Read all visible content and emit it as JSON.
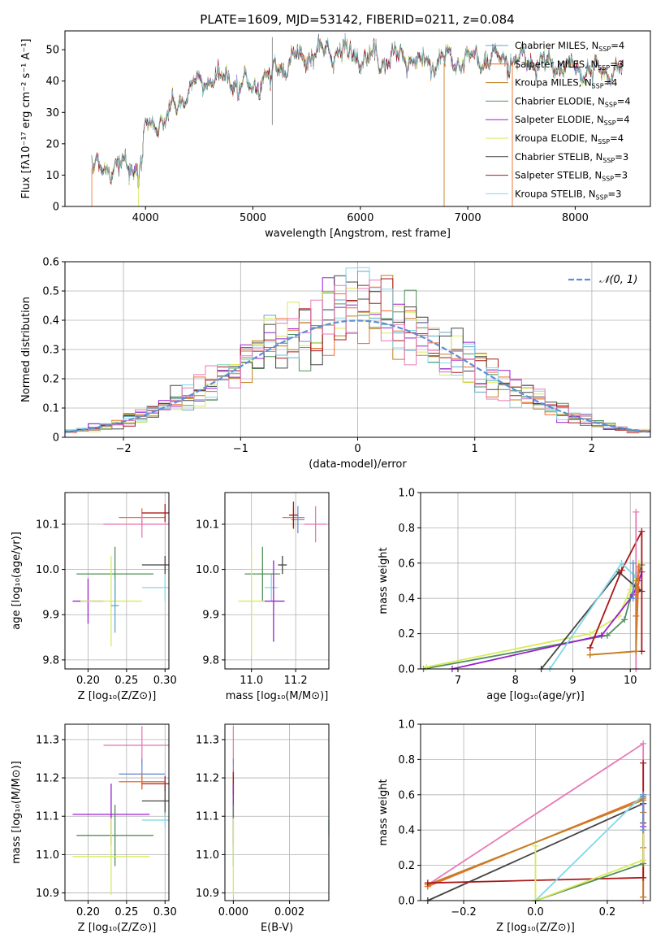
{
  "title": "PLATE=1609, MJD=53142, FIBERID=0211, z=0.084",
  "colors": {
    "c1": "#5fa8c8",
    "c2": "#ee6a2a",
    "c3": "#c08020",
    "c4": "#50905a",
    "c5": "#9a1fd0",
    "c6": "#d8ea5a",
    "c7": "#444444",
    "c8": "#aa1818",
    "c9": "#80d8e8",
    "pink": "#e87ab8",
    "blue": "#6b8fd8",
    "gauss": "#5b8fd9"
  },
  "chart_data": [
    {
      "id": "spectrum",
      "type": "line",
      "xlabel": "wavelength [Angstrom, rest frame]",
      "ylabel": "Flux [f$_\\lambda$10$^{-17}$ erg cm$^{-2}$ s$^{-1}$ A$^{-1}$]",
      "xlim": [
        3250,
        8700
      ],
      "ylim": [
        0,
        56
      ],
      "xticks": [
        4000,
        5000,
        6000,
        7000,
        8000
      ],
      "yticks": [
        0,
        10,
        20,
        30,
        40,
        50
      ],
      "series": [
        {
          "name": "Chabrier MILES, N_SSP=4",
          "color": "#5fa8c8"
        },
        {
          "name": "Salpeter MILES, N_SSP=3",
          "color": "#ee6a2a"
        },
        {
          "name": "Kroupa MILES, N_SSP=4",
          "color": "#c08020"
        },
        {
          "name": "Chabrier ELODIE, N_SSP=4",
          "color": "#50905a"
        },
        {
          "name": "Salpeter ELODIE, N_SSP=4",
          "color": "#9a1fd0"
        },
        {
          "name": "Kroupa ELODIE, N_SSP=4",
          "color": "#d8ea5a"
        },
        {
          "name": "Chabrier STELIB, N_SSP=3",
          "color": "#444444"
        },
        {
          "name": "Salpeter STELIB, N_SSP=3",
          "color": "#aa1818"
        },
        {
          "name": "Kroupa STELIB, N_SSP=3",
          "color": "#80d8e8"
        }
      ],
      "continuum_x": [
        3500,
        3700,
        3900,
        3950,
        4000,
        4200,
        4400,
        4600,
        4800,
        5000,
        5200,
        5400,
        5600,
        5800,
        6000,
        6200,
        6400,
        6600,
        6800,
        7000,
        7200,
        7400,
        7600,
        7800,
        8000,
        8200,
        8400
      ],
      "continuum_y": [
        12,
        13,
        12,
        15,
        25,
        28,
        37,
        41,
        40,
        38,
        44,
        47,
        49,
        50,
        48,
        47,
        48,
        46,
        47,
        47,
        47,
        47,
        46,
        45,
        44,
        43,
        43
      ]
    },
    {
      "id": "residuals",
      "type": "histogram",
      "xlabel": "(data-model)/error",
      "ylabel": "Normed distribution",
      "xlim": [
        -2.5,
        2.5
      ],
      "ylim": [
        0,
        0.6
      ],
      "xticks": [
        -2,
        -1,
        0,
        1,
        2
      ],
      "xtick_labels": [
        "−2",
        "−1",
        "0",
        "1",
        "2"
      ],
      "yticks": [
        0,
        0.1,
        0.2,
        0.3,
        0.4,
        0.5,
        0.6
      ],
      "legend": "$\\mathcal{N}(0,1)$",
      "bin_width": 0.1
    },
    {
      "id": "age_vs_Z",
      "type": "scatter",
      "xlabel": "Z [log$_{10}$(Z/Z$_\\odot$)]",
      "ylabel": "age  [log$_{10}$(age/yr)]",
      "xlim": [
        0.17,
        0.305
      ],
      "ylim": [
        9.78,
        10.17
      ],
      "xticks": [
        0.2,
        0.25,
        0.3
      ],
      "xtick_labels": [
        "0.20",
        "0.25",
        "0.30"
      ],
      "yticks": [
        9.8,
        9.9,
        10.0,
        10.1
      ],
      "ytick_labels": [
        "9.8",
        "9.9",
        "10.0",
        "10.1"
      ],
      "points": [
        {
          "color": "#ee6a2a",
          "x": 0.27,
          "y": 10.115,
          "ex": 0.03,
          "ey": 0.02
        },
        {
          "color": "#e87ab8",
          "x": 0.27,
          "y": 10.1,
          "ex": 0.05,
          "ey": 0.03
        },
        {
          "color": "#aa1818",
          "x": 0.3,
          "y": 10.125,
          "ex": 0.03,
          "ey": 0.02
        },
        {
          "color": "#444444",
          "x": 0.3,
          "y": 10.01,
          "ex": 0.03,
          "ey": 0.02
        },
        {
          "color": "#80d8e8",
          "x": 0.3,
          "y": 9.96,
          "ex": 0.03,
          "ey": 0.03
        },
        {
          "color": "#50905a",
          "x": 0.235,
          "y": 9.99,
          "ex": 0.05,
          "ey": 0.06
        },
        {
          "color": "#9a1fd0",
          "x": 0.2,
          "y": 9.93,
          "ex": 0.02,
          "ey": 0.05
        },
        {
          "color": "#d8ea5a",
          "x": 0.23,
          "y": 9.93,
          "ex": 0.04,
          "ey": 0.1
        },
        {
          "color": "#5fa8c8",
          "x": 0.235,
          "y": 9.92,
          "ex": 0.005,
          "ey": 0.06
        }
      ]
    },
    {
      "id": "age_vs_mass",
      "type": "scatter",
      "xlabel": "mass [log$_{10}$(M/M$_\\odot$)]",
      "ylabel": "",
      "xlim": [
        10.88,
        11.35
      ],
      "ylim": [
        9.78,
        10.17
      ],
      "xticks": [
        11.0,
        11.2
      ],
      "xtick_labels": [
        "11.0",
        "11.2"
      ],
      "yticks": [
        9.8,
        9.9,
        10.0,
        10.1
      ],
      "ytick_labels": [
        "9.8",
        "9.9",
        "10.0",
        "10.1"
      ],
      "points": [
        {
          "color": "#ee6a2a",
          "x": 11.19,
          "y": 10.115,
          "ex": 0.05,
          "ey": 0.02
        },
        {
          "color": "#6b8fd8",
          "x": 11.21,
          "y": 10.11,
          "ex": 0.03,
          "ey": 0.03
        },
        {
          "color": "#aa1818",
          "x": 11.19,
          "y": 10.12,
          "ex": 0.02,
          "ey": 0.03
        },
        {
          "color": "#e87ab8",
          "x": 11.29,
          "y": 10.1,
          "ex": 0.05,
          "ey": 0.04
        },
        {
          "color": "#444444",
          "x": 11.14,
          "y": 10.01,
          "ex": 0.02,
          "ey": 0.02
        },
        {
          "color": "#80d8e8",
          "x": 11.09,
          "y": 9.96,
          "ex": 0.03,
          "ey": 0.03
        },
        {
          "color": "#50905a",
          "x": 11.05,
          "y": 9.99,
          "ex": 0.08,
          "ey": 0.06
        },
        {
          "color": "#9a1fd0",
          "x": 11.1,
          "y": 9.93,
          "ex": 0.05,
          "ey": 0.09
        },
        {
          "color": "#d8ea5a",
          "x": 11.0,
          "y": 9.93,
          "ex": 0.06,
          "ey": 0.12
        }
      ]
    },
    {
      "id": "weight_vs_age",
      "type": "line",
      "xlabel": "age  [log$_{10}$(age/yr)]",
      "ylabel": "mass weight",
      "xlim": [
        6.35,
        10.35
      ],
      "ylim": [
        0,
        1
      ],
      "xticks": [
        7,
        8,
        9,
        10
      ],
      "yticks": [
        0,
        0.2,
        0.4,
        0.6,
        0.8,
        1.0
      ],
      "ytick_labels": [
        "0.0",
        "0.2",
        "0.4",
        "0.6",
        "0.8",
        "1.0"
      ],
      "series": [
        {
          "color": "#50905a",
          "x": [
            6.4,
            9.6,
            9.9,
            10.0,
            10.2
          ],
          "y": [
            0.0,
            0.19,
            0.28,
            0.4,
            0.59
          ]
        },
        {
          "color": "#d8ea5a",
          "x": [
            6.45,
            9.3,
            9.8,
            10.0,
            10.15
          ],
          "y": [
            0.01,
            0.2,
            0.3,
            0.45,
            0.6
          ]
        },
        {
          "color": "#9a1fd0",
          "x": [
            6.9,
            9.5,
            10.05,
            10.15,
            10.2
          ],
          "y": [
            0.0,
            0.19,
            0.42,
            0.5,
            0.55
          ]
        },
        {
          "color": "#444444",
          "x": [
            8.45,
            9.8,
            10.15,
            10.2
          ],
          "y": [
            0.0,
            0.55,
            0.45,
            0.44
          ]
        },
        {
          "color": "#aa1818",
          "x": [
            9.3,
            9.85,
            10.2,
            10.2
          ],
          "y": [
            0.12,
            0.56,
            0.78,
            0.1
          ]
        },
        {
          "color": "#80d8e8",
          "x": [
            8.6,
            9.85,
            10.1,
            10.15
          ],
          "y": [
            0.0,
            0.6,
            0.52,
            0.58
          ]
        },
        {
          "color": "#ee6a2a",
          "x": [
            9.3,
            10.1,
            10.15,
            10.1
          ],
          "y": [
            0.08,
            0.1,
            0.58,
            0.3
          ]
        },
        {
          "color": "#e87ab8",
          "x": [
            10.1,
            10.1
          ],
          "y": [
            0.89,
            0.0
          ]
        },
        {
          "color": "#c08020",
          "x": [
            9.3,
            10.1,
            10.1
          ],
          "y": [
            0.08,
            0.1,
            0.5
          ]
        },
        {
          "color": "#6b8fd8",
          "x": [
            10.05,
            10.05
          ],
          "y": [
            0.4,
            0.6
          ]
        }
      ]
    },
    {
      "id": "mass_vs_Z",
      "type": "scatter",
      "xlabel": "Z [log$_{10}$(Z/Z$_\\odot$)]",
      "ylabel": "mass [log$_{10}$(M/M$_\\odot$)]",
      "xlim": [
        0.17,
        0.305
      ],
      "ylim": [
        10.88,
        11.34
      ],
      "xticks": [
        0.2,
        0.25,
        0.3
      ],
      "xtick_labels": [
        "0.20",
        "0.25",
        "0.30"
      ],
      "yticks": [
        10.9,
        11.0,
        11.1,
        11.2,
        11.3
      ],
      "ytick_labels": [
        "10.9",
        "11.0",
        "11.1",
        "11.2",
        "11.3"
      ],
      "points": [
        {
          "color": "#e87ab8",
          "x": 0.27,
          "y": 11.285,
          "ex": 0.05,
          "ey": 0.05
        },
        {
          "color": "#6b8fd8",
          "x": 0.27,
          "y": 11.21,
          "ex": 0.03,
          "ey": 0.04
        },
        {
          "color": "#ee6a2a",
          "x": 0.27,
          "y": 11.19,
          "ex": 0.03,
          "ey": 0.02
        },
        {
          "color": "#aa1818",
          "x": 0.3,
          "y": 11.185,
          "ex": 0.03,
          "ey": 0.02
        },
        {
          "color": "#444444",
          "x": 0.3,
          "y": 11.14,
          "ex": 0.03,
          "ey": 0.04
        },
        {
          "color": "#9a1fd0",
          "x": 0.23,
          "y": 11.105,
          "ex": 0.05,
          "ey": 0.08
        },
        {
          "color": "#80d8e8",
          "x": 0.3,
          "y": 11.09,
          "ex": 0.03,
          "ey": 0.02
        },
        {
          "color": "#50905a",
          "x": 0.235,
          "y": 11.05,
          "ex": 0.05,
          "ey": 0.08
        },
        {
          "color": "#d8ea5a",
          "x": 0.23,
          "y": 10.995,
          "ex": 0.05,
          "ey": 0.1
        }
      ]
    },
    {
      "id": "mass_vs_ebv",
      "type": "scatter",
      "xlabel": "E(B-V)",
      "ylabel": "",
      "xlim": [
        -0.0003,
        0.0034
      ],
      "ylim": [
        10.88,
        11.34
      ],
      "xticks": [
        0,
        0.002
      ],
      "xtick_labels": [
        "0.000",
        "0.002"
      ],
      "yticks": [
        10.9,
        11.0,
        11.1,
        11.2,
        11.3
      ],
      "ytick_labels": [
        "10.9",
        "11.0",
        "11.1",
        "11.2",
        "11.3"
      ],
      "points": [
        {
          "color": "#e87ab8",
          "x": 0.0,
          "y": 11.285,
          "ex": 0.0,
          "ey": 0.05
        },
        {
          "color": "#6b8fd8",
          "x": 0.0,
          "y": 11.21,
          "ex": 0.0,
          "ey": 0.04
        },
        {
          "color": "#ee6a2a",
          "x": 0.0,
          "y": 11.19,
          "ex": 0.0,
          "ey": 0.03
        },
        {
          "color": "#aa1818",
          "x": 0.0,
          "y": 11.185,
          "ex": 0.0,
          "ey": 0.03
        },
        {
          "color": "#444444",
          "x": 0.0,
          "y": 11.14,
          "ex": 0.0,
          "ey": 0.04
        },
        {
          "color": "#9a1fd0",
          "x": 0.0,
          "y": 11.105,
          "ex": 0.0,
          "ey": 0.08
        },
        {
          "color": "#50905a",
          "x": 0.0,
          "y": 11.05,
          "ex": 0.0,
          "ey": 0.08
        },
        {
          "color": "#d8ea5a",
          "x": 0.0,
          "y": 10.995,
          "ex": 0.0,
          "ey": 0.1
        },
        {
          "color": "#80d8e8",
          "x": 0.0034,
          "y": 11.07,
          "ex": 0.0,
          "ey": 0.02
        }
      ]
    },
    {
      "id": "weight_vs_Z",
      "type": "line",
      "xlabel": "Z [log$_{10}$(Z/Z$_\\odot$)]",
      "ylabel": "mass weight",
      "xlim": [
        -0.32,
        0.32
      ],
      "ylim": [
        0,
        1
      ],
      "xticks": [
        -0.2,
        0.0,
        0.2
      ],
      "xtick_labels": [
        "−0.2",
        "0.0",
        "0.2"
      ],
      "yticks": [
        0,
        0.2,
        0.4,
        0.6,
        0.8,
        1.0
      ],
      "ytick_labels": [
        "0.0",
        "0.2",
        "0.4",
        "0.6",
        "0.8",
        "1.0"
      ],
      "series": [
        {
          "color": "#e87ab8",
          "x": [
            -0.3,
            0.3,
            0.3
          ],
          "y": [
            0.09,
            0.89,
            0.0
          ]
        },
        {
          "color": "#ee6a2a",
          "x": [
            -0.3,
            0.3,
            0.3,
            0.3
          ],
          "y": [
            0.08,
            0.58,
            0.3,
            0.02
          ]
        },
        {
          "color": "#c08020",
          "x": [
            -0.3,
            0.3,
            0.3,
            0.3
          ],
          "y": [
            0.09,
            0.57,
            0.5,
            0.02
          ]
        },
        {
          "color": "#444444",
          "x": [
            -0.3,
            0.3,
            0.3
          ],
          "y": [
            0.0,
            0.55,
            0.44
          ]
        },
        {
          "color": "#aa1818",
          "x": [
            -0.3,
            0.3,
            0.3
          ],
          "y": [
            0.1,
            0.13,
            0.78
          ]
        },
        {
          "color": "#80d8e8",
          "x": [
            0.0,
            0.3,
            0.3
          ],
          "y": [
            0.0,
            0.6,
            0.4
          ]
        },
        {
          "color": "#50905a",
          "x": [
            0.0,
            0.3,
            0.3
          ],
          "y": [
            0.0,
            0.21,
            0.59
          ]
        },
        {
          "color": "#d8ea5a",
          "x": [
            0.0,
            0.0,
            0.3,
            0.3
          ],
          "y": [
            0.31,
            0.0,
            0.23,
            0.4
          ]
        },
        {
          "color": "#9a1fd0",
          "x": [
            0.3,
            0.3
          ],
          "y": [
            0.42,
            0.55
          ]
        },
        {
          "color": "#6b8fd8",
          "x": [
            0.3,
            0.3
          ],
          "y": [
            0.4,
            0.6
          ]
        }
      ]
    }
  ]
}
